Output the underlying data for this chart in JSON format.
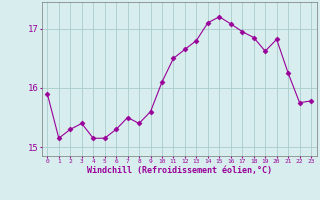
{
  "x": [
    0,
    1,
    2,
    3,
    4,
    5,
    6,
    7,
    8,
    9,
    10,
    11,
    12,
    13,
    14,
    15,
    16,
    17,
    18,
    19,
    20,
    21,
    22,
    23
  ],
  "y": [
    15.9,
    15.15,
    15.3,
    15.4,
    15.15,
    15.15,
    15.3,
    15.5,
    15.4,
    15.6,
    16.1,
    16.5,
    16.65,
    16.8,
    17.1,
    17.2,
    17.08,
    16.95,
    16.85,
    16.62,
    16.82,
    16.25,
    15.75,
    15.78
  ],
  "line_color": "#990099",
  "marker": "D",
  "marker_size": 2.5,
  "bg_color": "#d8eeee",
  "grid_color": "#aacccc",
  "xlabel": "Windchill (Refroidissement éolien,°C)",
  "tick_color": "#990099",
  "ylim": [
    14.85,
    17.45
  ],
  "yticks": [
    15,
    16,
    17
  ],
  "xlim": [
    -0.5,
    23.5
  ],
  "figsize": [
    3.2,
    2.0
  ],
  "dpi": 100
}
